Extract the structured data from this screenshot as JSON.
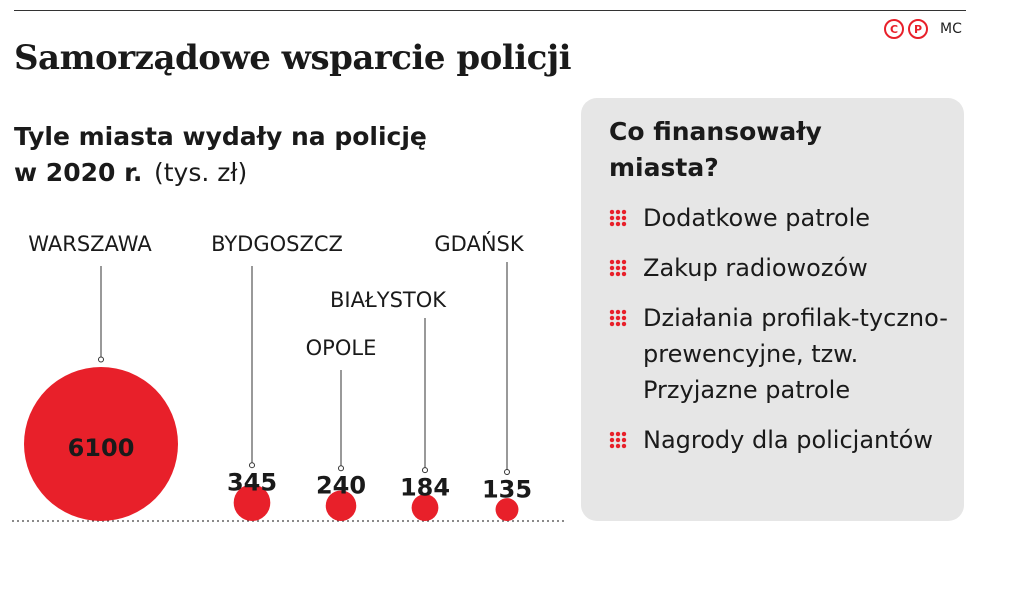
{
  "title": "Samorządowe wsparcie policji",
  "subtitle": {
    "bold": "Tyle miasta wydały na policję w 2020 r.",
    "unit": "(tys. zł)"
  },
  "logo": {
    "letters": [
      "C",
      "P"
    ],
    "author": "MC"
  },
  "colors": {
    "bubble": "#e8202a",
    "panel": "#e6e6e6",
    "text": "#1a1a1a"
  },
  "chart_data": {
    "type": "bubble",
    "title": "Tyle miasta wydały na policję w 2020 r.",
    "unit": "(tys. zł)",
    "categories": [
      "WARSZAWA",
      "BYDGOSZCZ",
      "OPOLE",
      "BIAŁYSTOK",
      "GDAŃSK"
    ],
    "values": [
      6100,
      345,
      240,
      184,
      135
    ]
  },
  "panel": {
    "title": "Co finansowały miasta?",
    "items": [
      {
        "label": "Dodatkowe patrole"
      },
      {
        "label": "Zakup radiowozów"
      },
      {
        "label": "Działania profilak-tyczno-prewencyjne, tzw. Przyjazne patrole"
      },
      {
        "label": "Nagrody dla policjantów"
      }
    ]
  }
}
